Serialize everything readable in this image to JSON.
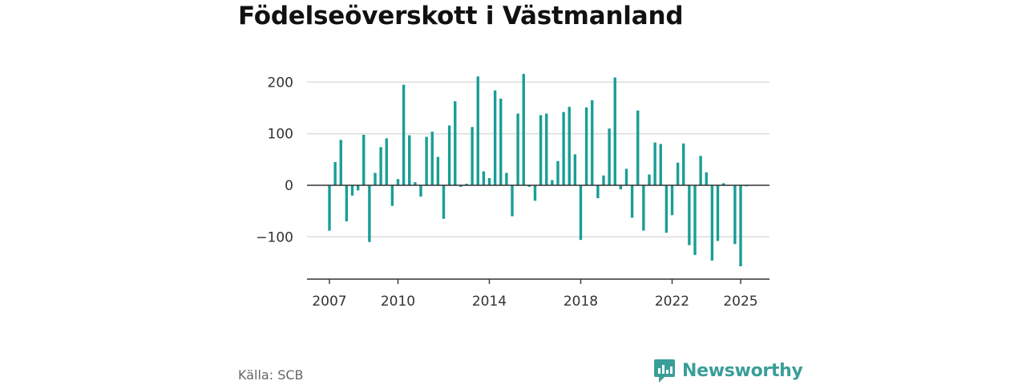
{
  "title": "Födelseöverskott i Västmanland",
  "source": "Källa: SCB",
  "brand": {
    "name": "Newsworthy",
    "icon": "newsworthy-logo-icon"
  },
  "colors": {
    "bar": "#1a9e96",
    "grid": "#dddddd",
    "axis": "#333333",
    "brand": "#3a9e98"
  },
  "chart_data": {
    "type": "bar",
    "title": "Födelseöverskott i Västmanland",
    "xlabel": "",
    "ylabel": "",
    "ylim": [
      -180,
      230
    ],
    "grid": true,
    "y_ticks": [
      200,
      100,
      0,
      -100
    ],
    "y_tick_labels": [
      "200",
      "100",
      "0",
      "−100"
    ],
    "x_tick_labels": [
      {
        "label": "2007",
        "x": 2007.0
      },
      {
        "label": "2010",
        "x": 2010.0
      },
      {
        "label": "2014",
        "x": 2014.0
      },
      {
        "label": "2018",
        "x": 2018.0
      },
      {
        "label": "2022",
        "x": 2022.0
      },
      {
        "label": "2025",
        "x": 2025.0
      }
    ],
    "x": [
      2007.0,
      2007.25,
      2007.5,
      2007.75,
      2008.0,
      2008.25,
      2008.5,
      2008.75,
      2009.0,
      2009.25,
      2009.5,
      2009.75,
      2010.0,
      2010.25,
      2010.5,
      2010.75,
      2011.0,
      2011.25,
      2011.5,
      2011.75,
      2012.0,
      2012.25,
      2012.5,
      2012.75,
      2013.0,
      2013.25,
      2013.5,
      2013.75,
      2014.0,
      2014.25,
      2014.5,
      2014.75,
      2015.0,
      2015.25,
      2015.5,
      2015.75,
      2016.0,
      2016.25,
      2016.5,
      2016.75,
      2017.0,
      2017.25,
      2017.5,
      2017.75,
      2018.0,
      2018.25,
      2018.5,
      2018.75,
      2019.0,
      2019.25,
      2019.5,
      2019.75,
      2020.0,
      2020.25,
      2020.5,
      2020.75,
      2021.0,
      2021.25,
      2021.5,
      2021.75,
      2022.0,
      2022.25,
      2022.5,
      2022.75,
      2023.0,
      2023.25,
      2023.5,
      2023.75,
      2024.0,
      2024.25,
      2024.5,
      2024.75,
      2025.0,
      2025.25
    ],
    "values": [
      -88,
      45,
      88,
      -70,
      -20,
      -10,
      98,
      -110,
      24,
      74,
      91,
      -40,
      12,
      195,
      97,
      6,
      -22,
      94,
      104,
      55,
      -65,
      116,
      163,
      -3,
      3,
      113,
      211,
      27,
      14,
      184,
      168,
      24,
      -60,
      139,
      216,
      -3,
      -30,
      136,
      139,
      10,
      47,
      142,
      152,
      60,
      -106,
      151,
      165,
      -25,
      19,
      110,
      209,
      -8,
      32,
      -63,
      145,
      -88,
      21,
      83,
      80,
      -92,
      -58,
      44,
      81,
      -116,
      -135,
      57,
      25,
      -146,
      -108,
      4,
      0,
      -114,
      -157,
      -2
    ]
  }
}
